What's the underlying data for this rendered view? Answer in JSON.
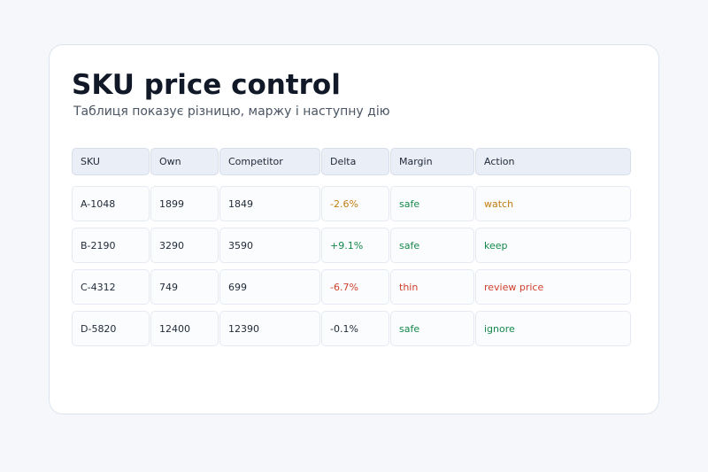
{
  "header": {
    "title": "SKU price control",
    "subtitle": "Таблиця показує різницю, маржу і наступну дію"
  },
  "table": {
    "columns": [
      "SKU",
      "Own",
      "Competitor",
      "Delta",
      "Margin",
      "Action"
    ],
    "rows": [
      [
        "A-1048",
        "1899",
        "1849",
        "-2.6%",
        "safe",
        "watch"
      ],
      [
        "B-2190",
        "3290",
        "3590",
        "+9.1%",
        "safe",
        "keep"
      ],
      [
        "C-4312",
        "749",
        "699",
        "-6.7%",
        "thin",
        "review price"
      ],
      [
        "D-5820",
        "12400",
        "12390",
        "-0.1%",
        "safe",
        "ignore"
      ]
    ],
    "row_colors": [
      [
        "#1f2937",
        "#1f2937",
        "#1f2937",
        "#c27c0e",
        "#15894a",
        "#c27c0e"
      ],
      [
        "#1f2937",
        "#1f2937",
        "#1f2937",
        "#15894a",
        "#15894a",
        "#15894a"
      ],
      [
        "#1f2937",
        "#1f2937",
        "#1f2937",
        "#d0402e",
        "#d0402e",
        "#d0402e"
      ],
      [
        "#1f2937",
        "#1f2937",
        "#1f2937",
        "#1f2937",
        "#15894a",
        "#15894a"
      ]
    ]
  }
}
